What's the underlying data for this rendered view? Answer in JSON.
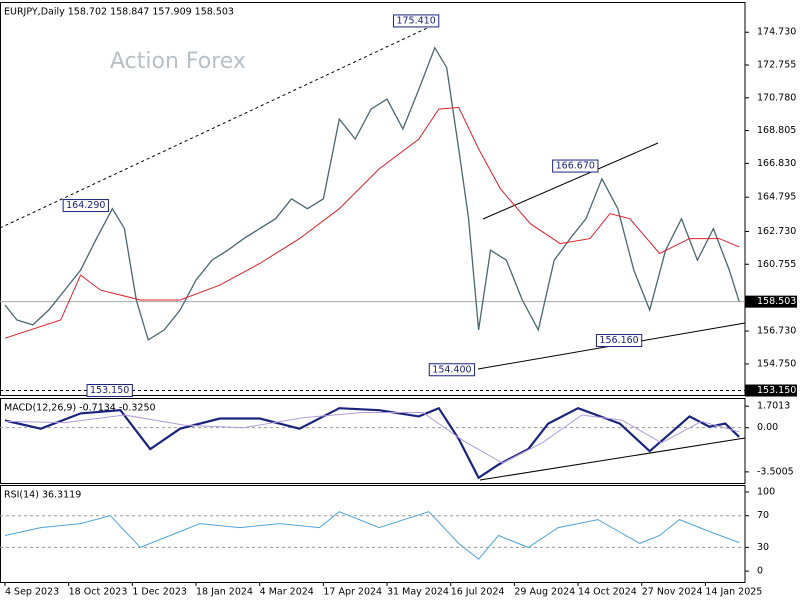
{
  "chart_data": [
    {
      "type": "line",
      "title": "EURJPY,Daily  158.702 158.847 157.909 158.503",
      "watermark": "Action Forex",
      "xlim": [
        -2.5,
        371.9
      ],
      "ylim": [
        152.88,
        176.49
      ],
      "yticks": [
        {
          "value": 174.73,
          "label": "174.730"
        },
        {
          "value": 172.755,
          "label": "172.755"
        },
        {
          "value": 170.78,
          "label": "170.780"
        },
        {
          "value": 168.805,
          "label": "168.805"
        },
        {
          "value": 166.83,
          "label": "166.830"
        },
        {
          "value": 164.795,
          "label": "164.795"
        },
        {
          "value": 162.73,
          "label": "162.730"
        },
        {
          "value": 160.755,
          "label": "160.755"
        },
        {
          "value": 156.73,
          "label": "156.730"
        },
        {
          "value": 154.75,
          "label": "154.750"
        }
      ],
      "series": [
        {
          "color": "#4a6670",
          "width": 1.3,
          "x": [
            0,
            6,
            14,
            22,
            30,
            38,
            46,
            54,
            60,
            66,
            72,
            80,
            88,
            96,
            104,
            112,
            120,
            128,
            136,
            144,
            152,
            160,
            168,
            176,
            184,
            192,
            200,
            208,
            216,
            222,
            228,
            233,
            238,
            244,
            252,
            260,
            268,
            276,
            284,
            292,
            300,
            308,
            316,
            324,
            332,
            340,
            348,
            356,
            364,
            369
          ],
          "values": [
            158.3,
            157.4,
            157.1,
            158.0,
            159.2,
            160.4,
            162.3,
            164.1,
            162.9,
            158.6,
            156.2,
            156.8,
            158.0,
            159.8,
            161.0,
            161.6,
            162.3,
            162.9,
            163.5,
            164.7,
            164.1,
            164.7,
            169.5,
            168.3,
            170.1,
            170.7,
            168.9,
            171.3,
            173.8,
            172.6,
            167.7,
            163.5,
            156.8,
            161.6,
            161.0,
            158.6,
            156.8,
            161.0,
            162.3,
            163.5,
            165.9,
            164.1,
            160.4,
            158.0,
            161.6,
            163.5,
            161.0,
            162.9,
            160.4,
            158.503
          ]
        },
        {
          "color": "#e0202a",
          "width": 1,
          "x": [
            0,
            28,
            38,
            48,
            68,
            88,
            108,
            128,
            148,
            168,
            188,
            208,
            218,
            228,
            238,
            249,
            264,
            279,
            294,
            304,
            314,
            329,
            344,
            359,
            369
          ],
          "values": [
            156.3,
            157.4,
            160.1,
            159.2,
            158.6,
            158.6,
            159.5,
            160.8,
            162.3,
            164.1,
            166.5,
            168.3,
            170.1,
            170.2,
            167.7,
            165.3,
            163.2,
            162.0,
            162.3,
            163.8,
            163.5,
            161.4,
            162.3,
            162.3,
            161.8
          ]
        }
      ],
      "annotations": [
        {
          "x": 218,
          "value": 175.41,
          "label": "175.410"
        },
        {
          "x": 52,
          "value": 164.29,
          "label": "164.290"
        },
        {
          "x": 298,
          "value": 166.67,
          "label": "166.670"
        },
        {
          "x": 236,
          "value": 154.4,
          "label": "154.400"
        },
        {
          "x": 320,
          "value": 156.16,
          "label": "156.160"
        },
        {
          "x": 64,
          "value": 153.15,
          "label": "153.150"
        }
      ],
      "hlines": [
        {
          "value": 158.503,
          "label": "158.503",
          "dashed": false
        },
        {
          "value": 153.15,
          "label": "153.150",
          "dashed": true
        }
      ]
    },
    {
      "type": "line",
      "title": "MACD(12,26,9) -0.7134 -0.3250",
      "xlim": [
        -2.5,
        371.9
      ],
      "ylim": [
        -4.38,
        2.27
      ],
      "yticks": [
        {
          "value": 1.7013,
          "label": "1.7013"
        },
        {
          "value": 0,
          "label": "0.00"
        },
        {
          "value": -3.5005,
          "label": "-3.5005"
        }
      ],
      "levels": [
        0
      ],
      "series": [
        {
          "color": "#1a237e",
          "width": 2.2,
          "x": [
            0,
            18,
            38,
            58,
            73,
            88,
            108,
            128,
            148,
            168,
            188,
            208,
            218,
            228,
            238,
            248,
            263,
            273,
            288,
            309,
            324,
            334,
            344,
            354,
            362,
            369
          ],
          "values": [
            0.57,
            -0.08,
            1.13,
            1.38,
            -1.7,
            -0.08,
            0.73,
            0.73,
            -0.08,
            1.54,
            1.38,
            0.89,
            1.54,
            -0.89,
            -3.97,
            -2.92,
            -1.7,
            0.32,
            1.54,
            0.32,
            -1.86,
            -0.49,
            0.89,
            0.08,
            0.32,
            -0.73
          ]
        },
        {
          "color": "#b39ddb",
          "width": 1,
          "x": [
            0,
            30,
            60,
            90,
            120,
            150,
            180,
            210,
            230,
            250,
            270,
            290,
            310,
            330,
            350,
            369
          ],
          "values": [
            0.5,
            0.4,
            1.0,
            0.2,
            0.0,
            0.8,
            1.2,
            1.2,
            -1.0,
            -2.8,
            -1.2,
            1.0,
            0.6,
            -1.2,
            0.5,
            -0.33
          ]
        }
      ]
    },
    {
      "type": "line",
      "title": "RSI(14) 36.3119",
      "xlim": [
        -2.5,
        371.9
      ],
      "ylim": [
        -13.75,
        107.5
      ],
      "yticks": [
        100,
        70,
        30,
        0
      ],
      "levels": [
        70,
        30
      ],
      "xticks": [
        {
          "value": 0,
          "label": "4 Sep 2023"
        },
        {
          "value": 32,
          "label": "18 Oct 2023"
        },
        {
          "value": 64,
          "label": "1 Dec 2023"
        },
        {
          "value": 96,
          "label": "18 Jan 2024"
        },
        {
          "value": 128,
          "label": "4 Mar 2024"
        },
        {
          "value": 160,
          "label": "17 Apr 2024"
        },
        {
          "value": 192,
          "label": "31 May 2024"
        },
        {
          "value": 224,
          "label": "16 Jul 2024"
        },
        {
          "value": 256,
          "label": "29 Aug 2024"
        },
        {
          "value": 288,
          "label": "14 Oct 2024"
        },
        {
          "value": 320,
          "label": "27 Nov 2024"
        },
        {
          "value": 352,
          "label": "14 Jan 2025"
        }
      ],
      "series": [
        {
          "color": "#4fa3d8",
          "width": 1,
          "x": [
            0,
            18,
            38,
            53,
            68,
            83,
            98,
            118,
            138,
            158,
            168,
            188,
            213,
            228,
            238,
            248,
            263,
            278,
            298,
            319,
            329,
            339,
            354,
            369
          ],
          "values": [
            45,
            55,
            60,
            70,
            30,
            45,
            60,
            55,
            60,
            55,
            75,
            55,
            75,
            35,
            15,
            45,
            30,
            55,
            65,
            35,
            45,
            65,
            50,
            36
          ]
        }
      ]
    }
  ]
}
